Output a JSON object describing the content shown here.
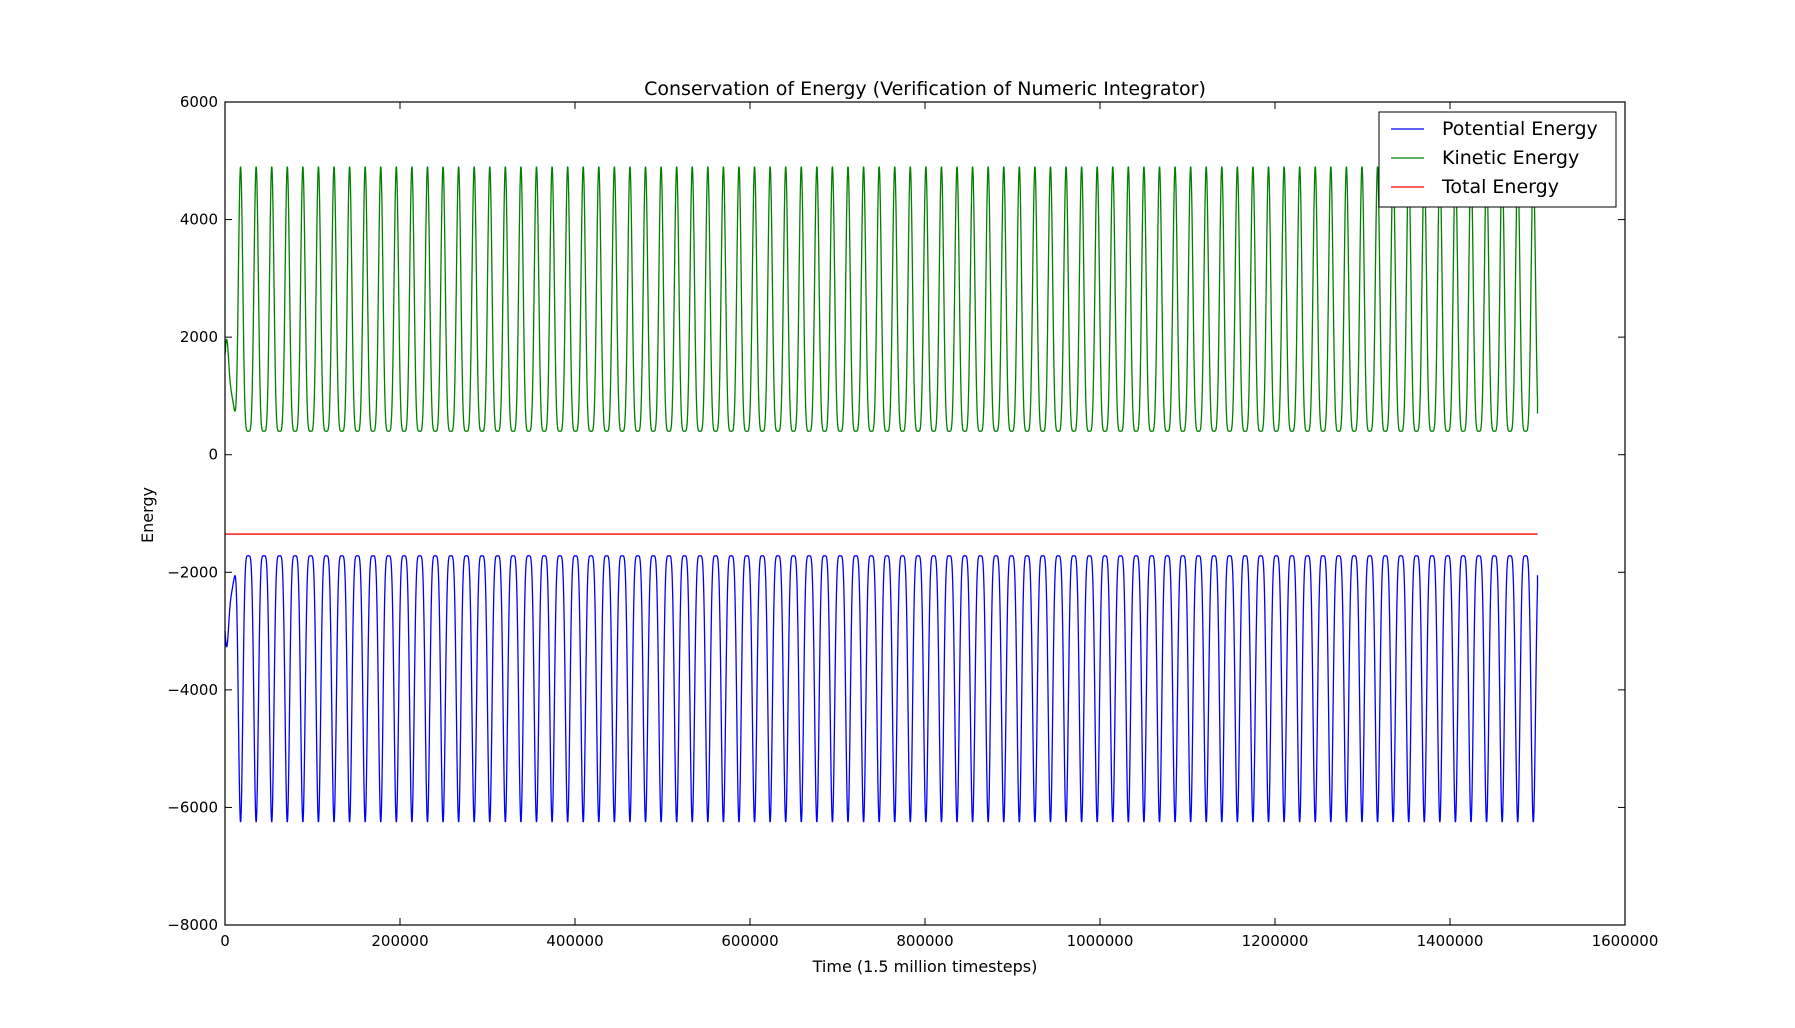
{
  "colors": {
    "background": "#ffffff",
    "axes": "#000000",
    "potential": "#0000ff",
    "kinetic": "#008000",
    "total": "#ff0000"
  },
  "chart_data": {
    "type": "line",
    "title": "Conservation of Energy (Verification of Numeric Integrator)",
    "xlabel": "Time (1.5 million timesteps)",
    "ylabel": "Energy",
    "xlim": [
      0,
      1600000
    ],
    "ylim": [
      -8000,
      6000
    ],
    "xticks": [
      0,
      200000,
      400000,
      600000,
      800000,
      1000000,
      1200000,
      1400000,
      1600000
    ],
    "xtick_labels": [
      "0",
      "200000",
      "400000",
      "600000",
      "800000",
      "1000000",
      "1200000",
      "1400000",
      "1600000"
    ],
    "yticks": [
      -8000,
      -6000,
      -4000,
      -2000,
      0,
      2000,
      4000,
      6000
    ],
    "ytick_labels": [
      "−8000",
      "−6000",
      "−4000",
      "−2000",
      "0",
      "2000",
      "4000",
      "6000"
    ],
    "grid": false,
    "legend_position": "top-right",
    "series": [
      {
        "name": "Potential Energy",
        "color": "#0000ff",
        "oscillation": {
          "x_start": 0,
          "x_end": 1500000,
          "period": 17800,
          "min": -6250,
          "max": -1720,
          "first_min_at": 17800,
          "start_value": -3000,
          "end_value": -2050
        }
      },
      {
        "name": "Kinetic Energy",
        "color": "#008000",
        "oscillation": {
          "x_start": 0,
          "x_end": 1500000,
          "period": 17800,
          "min": 400,
          "max": 4900,
          "first_max_at": 17800,
          "start_value": 1700,
          "end_value": 700
        }
      },
      {
        "name": "Total Energy",
        "color": "#ff0000",
        "x": [
          0,
          1500000
        ],
        "y": [
          -1350,
          -1350
        ]
      }
    ]
  }
}
